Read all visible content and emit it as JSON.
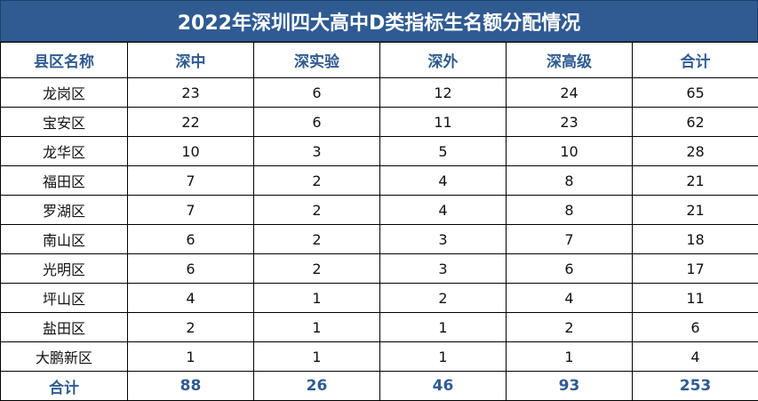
{
  "title": "2022年深圳四大高中D类指标生名额分配情况",
  "headers": [
    "县区名称",
    "深中",
    "深实验",
    "深外",
    "深高级",
    "合计"
  ],
  "rows": [
    [
      "龙岗区",
      "23",
      "6",
      "12",
      "24",
      "65"
    ],
    [
      "宝安区",
      "22",
      "6",
      "11",
      "23",
      "62"
    ],
    [
      "龙华区",
      "10",
      "3",
      "5",
      "10",
      "28"
    ],
    [
      "福田区",
      "7",
      "2",
      "4",
      "8",
      "21"
    ],
    [
      "罗湖区",
      "7",
      "2",
      "4",
      "8",
      "21"
    ],
    [
      "南山区",
      "6",
      "2",
      "3",
      "7",
      "18"
    ],
    [
      "光明区",
      "6",
      "2",
      "3",
      "6",
      "17"
    ],
    [
      "坪山区",
      "4",
      "1",
      "2",
      "4",
      "11"
    ],
    [
      "盐田区",
      "2",
      "1",
      "1",
      "2",
      "6"
    ],
    [
      "大鹏新区",
      "1",
      "1",
      "1",
      "1",
      "4"
    ]
  ],
  "totals": [
    "合计",
    "88",
    "26",
    "46",
    "93",
    "253"
  ],
  "colors": {
    "header_bg": "#2f5b92",
    "header_text": "#2f5b92",
    "title_text": "#ffffff"
  }
}
